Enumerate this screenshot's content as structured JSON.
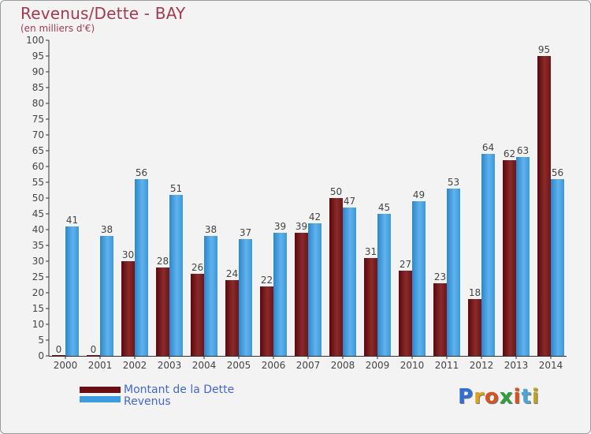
{
  "header": {
    "title": "Revenus/Dette - BAY",
    "subtitle": "(en milliers d'€)"
  },
  "legend": {
    "items": [
      {
        "label": "Montant de la Dette",
        "color": "#6b0f14"
      },
      {
        "label": "Revenus",
        "color": "#3d9be0"
      }
    ]
  },
  "logo": {
    "text": "Proxiti",
    "colors": [
      "#2f6fd6",
      "#e0a21b",
      "#d5541e",
      "#2f9e3e",
      "#d5541e",
      "#4aa6d8",
      "#c2a218"
    ]
  },
  "chart_data": {
    "type": "bar",
    "categories": [
      "2000",
      "2001",
      "2002",
      "2003",
      "2004",
      "2005",
      "2006",
      "2007",
      "2008",
      "2009",
      "2010",
      "2011",
      "2012",
      "2013",
      "2014"
    ],
    "series": [
      {
        "name": "Montant de la Dette",
        "values": [
          0,
          0,
          30,
          28,
          26,
          24,
          22,
          39,
          50,
          31,
          27,
          23,
          18,
          62,
          95
        ],
        "color": "#6b0f14"
      },
      {
        "name": "Revenus",
        "values": [
          41,
          38,
          56,
          51,
          38,
          37,
          39,
          42,
          47,
          45,
          49,
          53,
          64,
          63,
          56
        ],
        "color": "#3d9be0"
      }
    ],
    "ylim": [
      0,
      100
    ],
    "yticks": [
      0,
      5,
      10,
      15,
      20,
      25,
      30,
      35,
      40,
      45,
      50,
      55,
      60,
      65,
      70,
      75,
      80,
      85,
      90,
      95,
      100
    ],
    "grid": false,
    "legend_position": "bottom-left"
  }
}
